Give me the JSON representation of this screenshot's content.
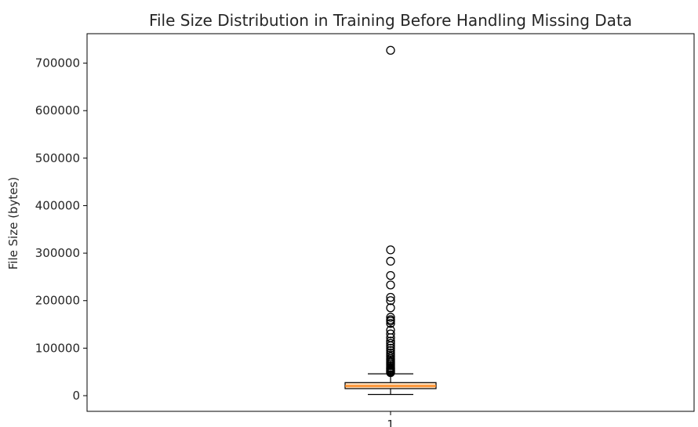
{
  "chart_data": {
    "type": "box",
    "title": "File Size Distribution in Training Before Handling Missing Data",
    "xlabel": "",
    "ylabel": "File Size (bytes)",
    "categories": [
      "1"
    ],
    "ylim": [
      -33000,
      762000
    ],
    "yticks": [
      0,
      100000,
      200000,
      300000,
      400000,
      500000,
      600000,
      700000
    ],
    "ytick_labels": [
      "0",
      "100000",
      "200000",
      "300000",
      "400000",
      "500000",
      "600000",
      "700000"
    ],
    "xtick_labels": [
      "1"
    ],
    "grid": false,
    "legend": "none",
    "box": {
      "whisker_low": 2500,
      "q1": 14800,
      "median": 20300,
      "q3": 27500,
      "whisker_high": 46000
    },
    "outliers": [
      727000,
      307000,
      283000,
      253000,
      233000,
      207000,
      200000,
      185000,
      165000,
      160000,
      157000,
      152000,
      138000,
      130000,
      122000,
      115000,
      110000,
      105000,
      100000,
      95000,
      90000,
      86000,
      82000,
      78000,
      75000,
      72000,
      69000,
      66000,
      63000,
      60000,
      58000,
      56000,
      54000,
      52000,
      50000,
      48500
    ],
    "colors": {
      "box_edge": "#000000",
      "median": "#ff7f0e",
      "box_fill": "#fcd9b4",
      "outlier_edge": "#000000"
    }
  }
}
